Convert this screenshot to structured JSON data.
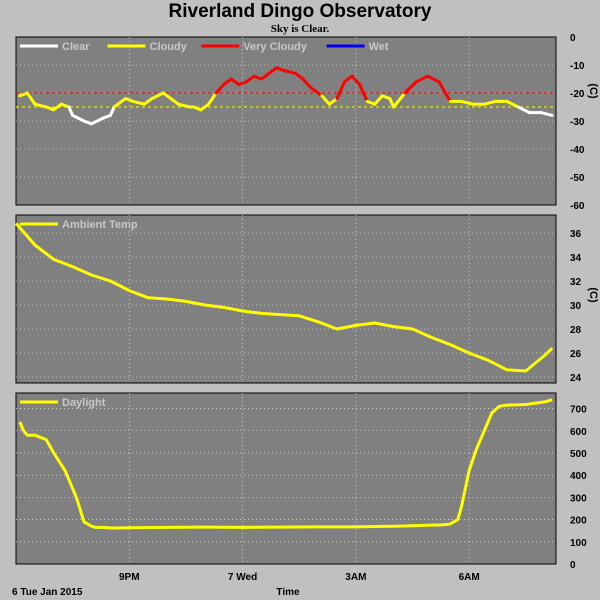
{
  "header": {
    "title": "Riverland Dingo Observatory",
    "subtitle": "Sky is Clear."
  },
  "footer": {
    "date_label": "6 Tue Jan 2015",
    "x_axis_title": "Time",
    "x_ticks": [
      "9PM",
      "7 Wed",
      "3AM",
      "6AM"
    ]
  },
  "colors": {
    "plot_bg": "#808080",
    "grid": "#ffffff",
    "yellow": "#ffff00",
    "red": "#ff0000",
    "white": "#ffffff",
    "blue": "#0000ff",
    "legend_text": "#c8c8c8"
  },
  "chart_data": [
    {
      "type": "line",
      "unit": "(C)",
      "ylim": [
        -60,
        0
      ],
      "yticks": [
        0,
        -10,
        -20,
        -30,
        -40,
        -50,
        -60
      ],
      "threshold_lines": [
        -20,
        -25
      ],
      "legend": [
        {
          "name": "Clear",
          "color": "#ffffff"
        },
        {
          "name": "Cloudy",
          "color": "#ffff00"
        },
        {
          "name": "Very Cloudy",
          "color": "#ff0000"
        },
        {
          "name": "Wet",
          "color": "#0000ff"
        }
      ],
      "x_hours": [
        18.1,
        18.3,
        18.5,
        18.8,
        19.0,
        19.2,
        19.4,
        19.5,
        19.8,
        20.0,
        20.3,
        20.5,
        20.6,
        20.7,
        20.9,
        21.1,
        21.4,
        21.6,
        21.9,
        22.1,
        22.3,
        22.6,
        22.7,
        22.9,
        23.1,
        23.3,
        23.5,
        23.7,
        23.9,
        24.1,
        24.3,
        24.5,
        24.7,
        24.9,
        25.1,
        25.4,
        25.6,
        25.8,
        26.1,
        26.3,
        26.5,
        26.7,
        26.9,
        27.1,
        27.3,
        27.5,
        27.7,
        27.9,
        28.0,
        28.3,
        28.6,
        28.9,
        29.2,
        29.5,
        29.8,
        30.1,
        30.4,
        30.7,
        31.0,
        31.3,
        31.6,
        31.9,
        32.2
      ],
      "sky_temp": [
        -21,
        -20,
        -24,
        -25,
        -26,
        -24,
        -25,
        -28,
        -30,
        -31,
        -29,
        -28,
        -25,
        -24,
        -22,
        -23,
        -24,
        -22,
        -20,
        -22,
        -24,
        -25,
        -25,
        -26,
        -24,
        -20,
        -17,
        -15,
        -17,
        -16,
        -14,
        -15,
        -13,
        -11,
        -12,
        -13,
        -15,
        -18,
        -21,
        -24,
        -22,
        -16,
        -14,
        -17,
        -23,
        -24,
        -21,
        -22,
        -25,
        -20,
        -16,
        -14,
        -16,
        -23,
        -23,
        -24,
        -24,
        -23,
        -23,
        -25,
        -27,
        -27,
        -28
      ]
    },
    {
      "type": "line",
      "unit": "(C)",
      "legend": [
        {
          "name": "Ambient Temp",
          "color": "#ffff00"
        }
      ],
      "ylim": [
        23.5,
        37.5
      ],
      "yticks": [
        24,
        26,
        28,
        30,
        32,
        34,
        36
      ],
      "x_hours": [
        18.0,
        18.5,
        19.0,
        19.5,
        20.0,
        20.5,
        21.0,
        21.5,
        22.0,
        22.5,
        23.0,
        23.5,
        24.0,
        24.5,
        25.0,
        25.5,
        26.0,
        26.5,
        27.0,
        27.5,
        28.0,
        28.5,
        29.0,
        29.5,
        30.0,
        30.5,
        31.0,
        31.5,
        32.0,
        32.2
      ],
      "values": [
        36.8,
        35.0,
        33.8,
        33.2,
        32.5,
        32.0,
        31.2,
        30.6,
        30.5,
        30.3,
        30.0,
        29.8,
        29.5,
        29.3,
        29.2,
        29.1,
        28.6,
        28.0,
        28.3,
        28.5,
        28.2,
        28.0,
        27.3,
        26.7,
        26.0,
        25.4,
        24.6,
        24.5,
        25.8,
        26.4
      ]
    },
    {
      "type": "line",
      "legend": [
        {
          "name": "Daylight",
          "color": "#ffff00"
        }
      ],
      "ylim": [
        0,
        770
      ],
      "yticks": [
        0,
        100,
        200,
        300,
        400,
        500,
        600,
        700
      ],
      "x_hours": [
        18.1,
        18.2,
        18.3,
        18.5,
        18.8,
        19.0,
        19.3,
        19.6,
        19.8,
        20.0,
        20.1,
        20.3,
        20.5,
        21.0,
        22.0,
        23.0,
        24.0,
        25.0,
        26.0,
        27.0,
        28.0,
        28.5,
        29.0,
        29.3,
        29.5,
        29.7,
        29.8,
        30.0,
        30.2,
        30.4,
        30.6,
        30.8,
        31.0,
        31.5,
        32.0,
        32.2
      ],
      "values": [
        640,
        600,
        580,
        580,
        560,
        500,
        420,
        300,
        190,
        170,
        165,
        165,
        162,
        163,
        165,
        166,
        165,
        166,
        167,
        167,
        170,
        172,
        175,
        176,
        180,
        200,
        260,
        420,
        520,
        600,
        680,
        710,
        715,
        718,
        730,
        740
      ]
    }
  ],
  "panel_ranges": {
    "x_start_hour": 18.0,
    "x_end_hour": 32.3
  }
}
